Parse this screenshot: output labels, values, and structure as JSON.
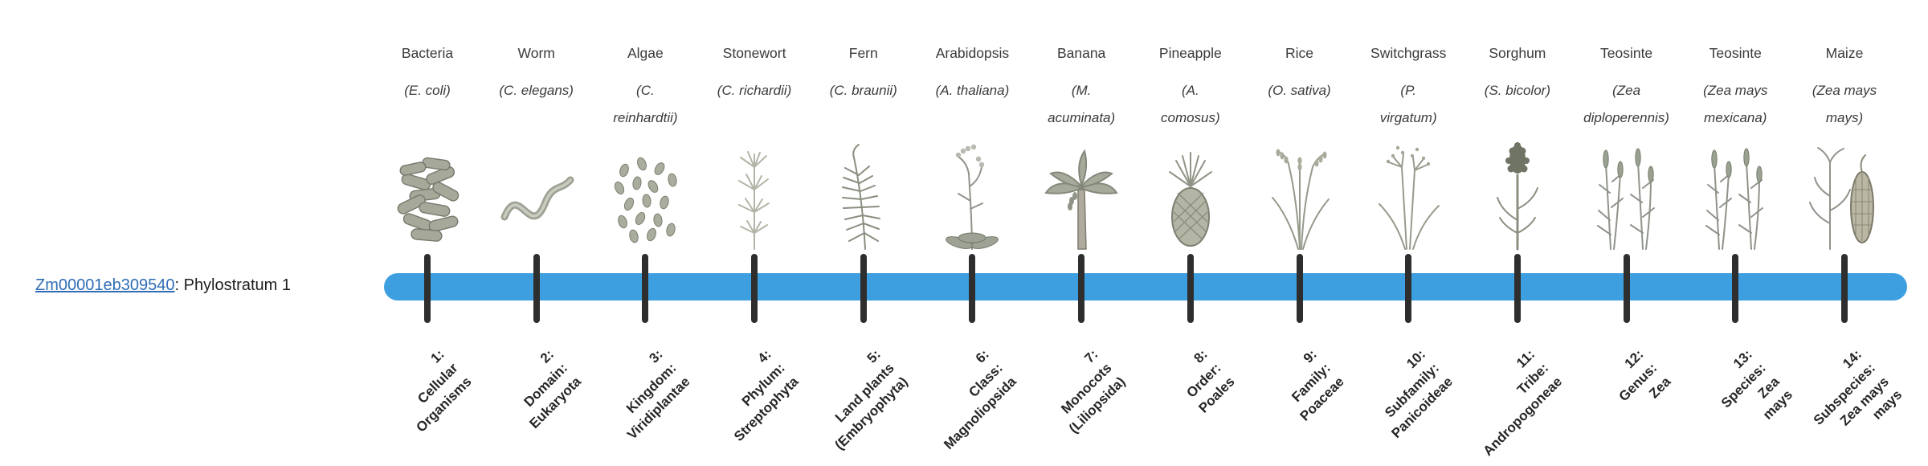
{
  "gene": {
    "id": "Zm00001eb309540",
    "suffix": ": Phylostratum 1"
  },
  "colors": {
    "bar": "#3d9fdf",
    "tick": "#2e2e2e",
    "link": "#2f6db5"
  },
  "organisms": [
    {
      "name": "Bacteria",
      "sci": "(E. coli)",
      "icon": "bacteria-icon"
    },
    {
      "name": "Worm",
      "sci": "(C. elegans)",
      "icon": "worm-icon"
    },
    {
      "name": "Algae",
      "sci": "(C.\nreinhardtii)",
      "icon": "algae-icon"
    },
    {
      "name": "Stonewort",
      "sci": "(C. richardii)",
      "icon": "stonewort-icon"
    },
    {
      "name": "Fern",
      "sci": "(C. braunii)",
      "icon": "fern-icon"
    },
    {
      "name": "Arabidopsis",
      "sci": "(A. thaliana)",
      "icon": "arabidopsis-icon"
    },
    {
      "name": "Banana",
      "sci": "(M.\nacuminata)",
      "icon": "banana-icon"
    },
    {
      "name": "Pineapple",
      "sci": "(A.\ncomosus)",
      "icon": "pineapple-icon"
    },
    {
      "name": "Rice",
      "sci": "(O. sativa)",
      "icon": "rice-icon"
    },
    {
      "name": "Switchgrass",
      "sci": "(P.\nvirgatum)",
      "icon": "switchgrass-icon"
    },
    {
      "name": "Sorghum",
      "sci": "(S. bicolor)",
      "icon": "sorghum-icon"
    },
    {
      "name": "Teosinte",
      "sci": "(Zea\ndiploperennis)",
      "icon": "teosinte-icon"
    },
    {
      "name": "Teosinte",
      "sci": "(Zea mays\nmexicana)",
      "icon": "teosinte-icon"
    },
    {
      "name": "Maize",
      "sci": "(Zea mays\nmays)",
      "icon": "maize-icon"
    }
  ],
  "strata": [
    "1:\nCellular\nOrganisms",
    "2:\nDomain:\nEukaryota",
    "3:\nKingdom:\nViridiplantae",
    "4:\nPhylum:\nStreptophyta",
    "5:\nLand plants\n(Embryophyta)",
    "6:\nClass:\nMagnoliopsida",
    "7:\nMonocots\n(Liliopsida)",
    "8:\nOrder:\nPoales",
    "9:\nFamily:\nPoaceae",
    "10:\nSubfamily:\nPanicoideae",
    "11:\nTribe:\nAndropogoneae",
    "12:\nGenus:\nZea",
    "13:\nSpecies:\nZea\nmays",
    "14:\nSubspecies:\nZea mays\nmays"
  ]
}
